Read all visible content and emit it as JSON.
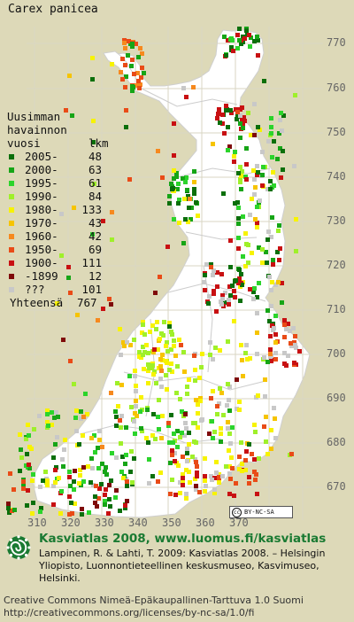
{
  "species": "Carex panicea",
  "legend": {
    "heading": [
      "Uusimman",
      "havainnon"
    ],
    "column_year": "vuosi",
    "column_count": "lkm",
    "rows": [
      {
        "label": "2005-",
        "count": "48",
        "color": "#0b6f0b"
      },
      {
        "label": "2000-",
        "count": "63",
        "color": "#16a516"
      },
      {
        "label": "1995-",
        "count": "61",
        "color": "#2bd42b"
      },
      {
        "label": "1990-",
        "count": "84",
        "color": "#9ff02a"
      },
      {
        "label": "1980-",
        "count": "133",
        "color": "#f7f300"
      },
      {
        "label": "1970-",
        "count": "43",
        "color": "#f6c400"
      },
      {
        "label": "1960-",
        "count": "42",
        "color": "#f6891e"
      },
      {
        "label": "1950-",
        "count": "69",
        "color": "#e94b17"
      },
      {
        "label": "1900-",
        "count": "111",
        "color": "#c81012"
      },
      {
        "label": "-1899",
        "count": "12",
        "color": "#7f0a0a"
      },
      {
        "label": "???",
        "count": "101",
        "color": "#c8c8c8"
      }
    ],
    "total_label": "Yhteensä",
    "total_value": "767"
  },
  "grid_y_labels": [
    "770",
    "760",
    "750",
    "740",
    "730",
    "720",
    "710",
    "700",
    "690",
    "680",
    "670"
  ],
  "grid_x_labels": [
    "310",
    "320",
    "330",
    "340",
    "350",
    "360",
    "370"
  ],
  "cc_badge": "BY-NC-SA",
  "footer": {
    "brand": "Kasviatlas 2008, www.luomus.fi/kasviatlas",
    "citation": "Lampinen, R. & Lahti, T. 2009: Kasviatlas 2008. – Helsingin Yliopisto, Luonnontieteellinen keskusmuseo, Kasvimuseo, Helsinki.",
    "license_line1": "Creative Commons Nimeä-Epäkaupallinen-Tarttuva 1.0 Suomi",
    "license_line2": "http://creativecommons.org/licenses/by-nc-sa/1.0/fi"
  },
  "colors": {
    "background": "#ddd9b8",
    "land": "#ffffff",
    "grid": "#d9d6c3",
    "brand": "#1a7a32"
  }
}
